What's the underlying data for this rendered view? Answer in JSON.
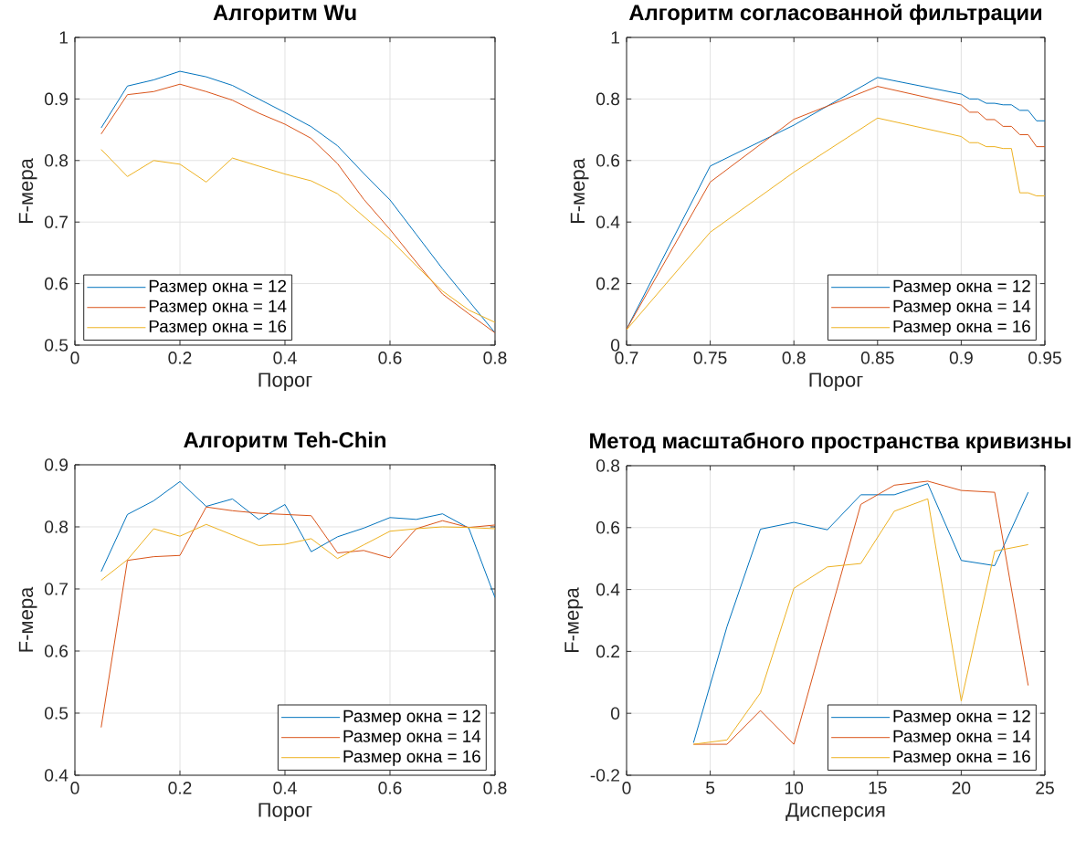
{
  "chart_data": [
    {
      "type": "line",
      "title": "Алгоритм Wu",
      "xlabel": "Порог",
      "ylabel": "F-мера",
      "x": [
        0.05,
        0.1,
        0.15,
        0.2,
        0.25,
        0.3,
        0.35,
        0.4,
        0.45,
        0.5,
        0.55,
        0.6,
        0.65,
        0.7,
        0.75,
        0.8
      ],
      "series": [
        {
          "name": "Размер окна = 12",
          "color": "#0072bd",
          "values": [
            0.853,
            0.921,
            0.931,
            0.945,
            0.936,
            0.922,
            0.9,
            0.878,
            0.855,
            0.824,
            0.779,
            0.736,
            0.68,
            0.624,
            0.572,
            0.52
          ]
        },
        {
          "name": "Размер окна = 14",
          "color": "#d95319",
          "values": [
            0.843,
            0.907,
            0.912,
            0.924,
            0.912,
            0.898,
            0.877,
            0.859,
            0.836,
            0.795,
            0.737,
            0.688,
            0.635,
            0.583,
            0.551,
            0.52
          ]
        },
        {
          "name": "Размер окна = 16",
          "color": "#edb120",
          "values": [
            0.818,
            0.774,
            0.8,
            0.794,
            0.765,
            0.804,
            0.791,
            0.778,
            0.767,
            0.746,
            0.709,
            0.672,
            0.629,
            0.588,
            0.557,
            0.537
          ]
        }
      ],
      "xlim": [
        0,
        0.8
      ],
      "ylim": [
        0.5,
        1
      ],
      "xticks": [
        0,
        0.2,
        0.4,
        0.6,
        0.8
      ],
      "yticks": [
        0.5,
        0.6,
        0.7,
        0.8,
        0.9,
        1
      ],
      "grid": true,
      "legend": "bottom left"
    },
    {
      "type": "line",
      "title": "Алгоритм согласованной фильтрации",
      "xlabel": "Порог",
      "ylabel": "F-мера",
      "x": [
        0.7,
        0.75,
        0.8,
        0.85,
        0.9,
        0.905,
        0.91,
        0.915,
        0.92,
        0.925,
        0.93,
        0.935,
        0.94,
        0.945,
        0.95
      ],
      "series": [
        {
          "name": "Размер окна = 12",
          "color": "#0072bd",
          "values": [
            0.052,
            0.582,
            0.715,
            0.87,
            0.816,
            0.8,
            0.8,
            0.786,
            0.786,
            0.781,
            0.781,
            0.763,
            0.763,
            0.729,
            0.729
          ]
        },
        {
          "name": "Размер окна = 14",
          "color": "#d95319",
          "values": [
            0.052,
            0.53,
            0.734,
            0.841,
            0.78,
            0.757,
            0.757,
            0.733,
            0.733,
            0.711,
            0.711,
            0.684,
            0.684,
            0.645,
            0.645
          ]
        },
        {
          "name": "Размер окна = 16",
          "color": "#edb120",
          "values": [
            0.05,
            0.367,
            0.562,
            0.738,
            0.678,
            0.658,
            0.658,
            0.645,
            0.645,
            0.639,
            0.639,
            0.495,
            0.495,
            0.485,
            0.485
          ]
        }
      ],
      "xlim": [
        0.7,
        0.95
      ],
      "ylim": [
        0,
        1
      ],
      "xticks": [
        0.7,
        0.75,
        0.8,
        0.85,
        0.9,
        0.95
      ],
      "yticks": [
        0,
        0.2,
        0.4,
        0.6,
        0.8,
        1
      ],
      "grid": true,
      "legend": "bottom right"
    },
    {
      "type": "line",
      "title": "Алгоритм Teh-Chin",
      "xlabel": "Порог",
      "ylabel": "F-мера",
      "x": [
        0.05,
        0.1,
        0.15,
        0.2,
        0.25,
        0.3,
        0.35,
        0.4,
        0.45,
        0.5,
        0.55,
        0.6,
        0.65,
        0.7,
        0.75,
        0.8
      ],
      "series": [
        {
          "name": "Размер окна = 12",
          "color": "#0072bd",
          "values": [
            0.728,
            0.82,
            0.842,
            0.873,
            0.833,
            0.845,
            0.812,
            0.836,
            0.76,
            0.784,
            0.798,
            0.815,
            0.812,
            0.821,
            0.798,
            0.686
          ]
        },
        {
          "name": "Размер окна = 14",
          "color": "#d95319",
          "values": [
            0.477,
            0.746,
            0.752,
            0.754,
            0.832,
            0.826,
            0.822,
            0.82,
            0.818,
            0.758,
            0.762,
            0.75,
            0.797,
            0.81,
            0.799,
            0.803
          ]
        },
        {
          "name": "Размер окна = 16",
          "color": "#edb120",
          "values": [
            0.714,
            0.747,
            0.797,
            0.785,
            0.804,
            0.787,
            0.77,
            0.772,
            0.781,
            0.749,
            0.771,
            0.793,
            0.797,
            0.8,
            0.799,
            0.797
          ]
        }
      ],
      "xlim": [
        0,
        0.8
      ],
      "ylim": [
        0.4,
        0.9
      ],
      "xticks": [
        0,
        0.2,
        0.4,
        0.6,
        0.8
      ],
      "yticks": [
        0.4,
        0.5,
        0.6,
        0.7,
        0.8,
        0.9
      ],
      "grid": true,
      "legend": "bottom right"
    },
    {
      "type": "line",
      "title": "Метод масштабного пространства кривизны",
      "xlabel": "Дисперсия",
      "ylabel": "F-мера",
      "x": [
        4,
        6,
        8,
        10,
        12,
        14,
        16,
        18,
        20,
        22,
        24
      ],
      "series": [
        {
          "name": "Размер окна = 12",
          "color": "#0072bd",
          "values": [
            -0.095,
            0.28,
            0.595,
            0.617,
            0.593,
            0.706,
            0.706,
            0.742,
            0.494,
            0.477,
            0.714
          ]
        },
        {
          "name": "Размер окна = 14",
          "color": "#d95319",
          "values": [
            -0.1,
            -0.1,
            0.009,
            -0.1,
            0.29,
            0.675,
            0.737,
            0.75,
            0.72,
            0.714,
            0.09
          ]
        },
        {
          "name": "Размер окна = 16",
          "color": "#edb120",
          "values": [
            -0.1,
            -0.086,
            0.066,
            0.404,
            0.473,
            0.484,
            0.653,
            0.693,
            0.04,
            0.524,
            0.545
          ]
        }
      ],
      "xlim": [
        0,
        25
      ],
      "ylim": [
        -0.2,
        0.8
      ],
      "xticks": [
        0,
        5,
        10,
        15,
        20,
        25
      ],
      "yticks": [
        -0.2,
        0,
        0.2,
        0.4,
        0.6,
        0.8
      ],
      "grid": true,
      "legend": "bottom right"
    }
  ]
}
